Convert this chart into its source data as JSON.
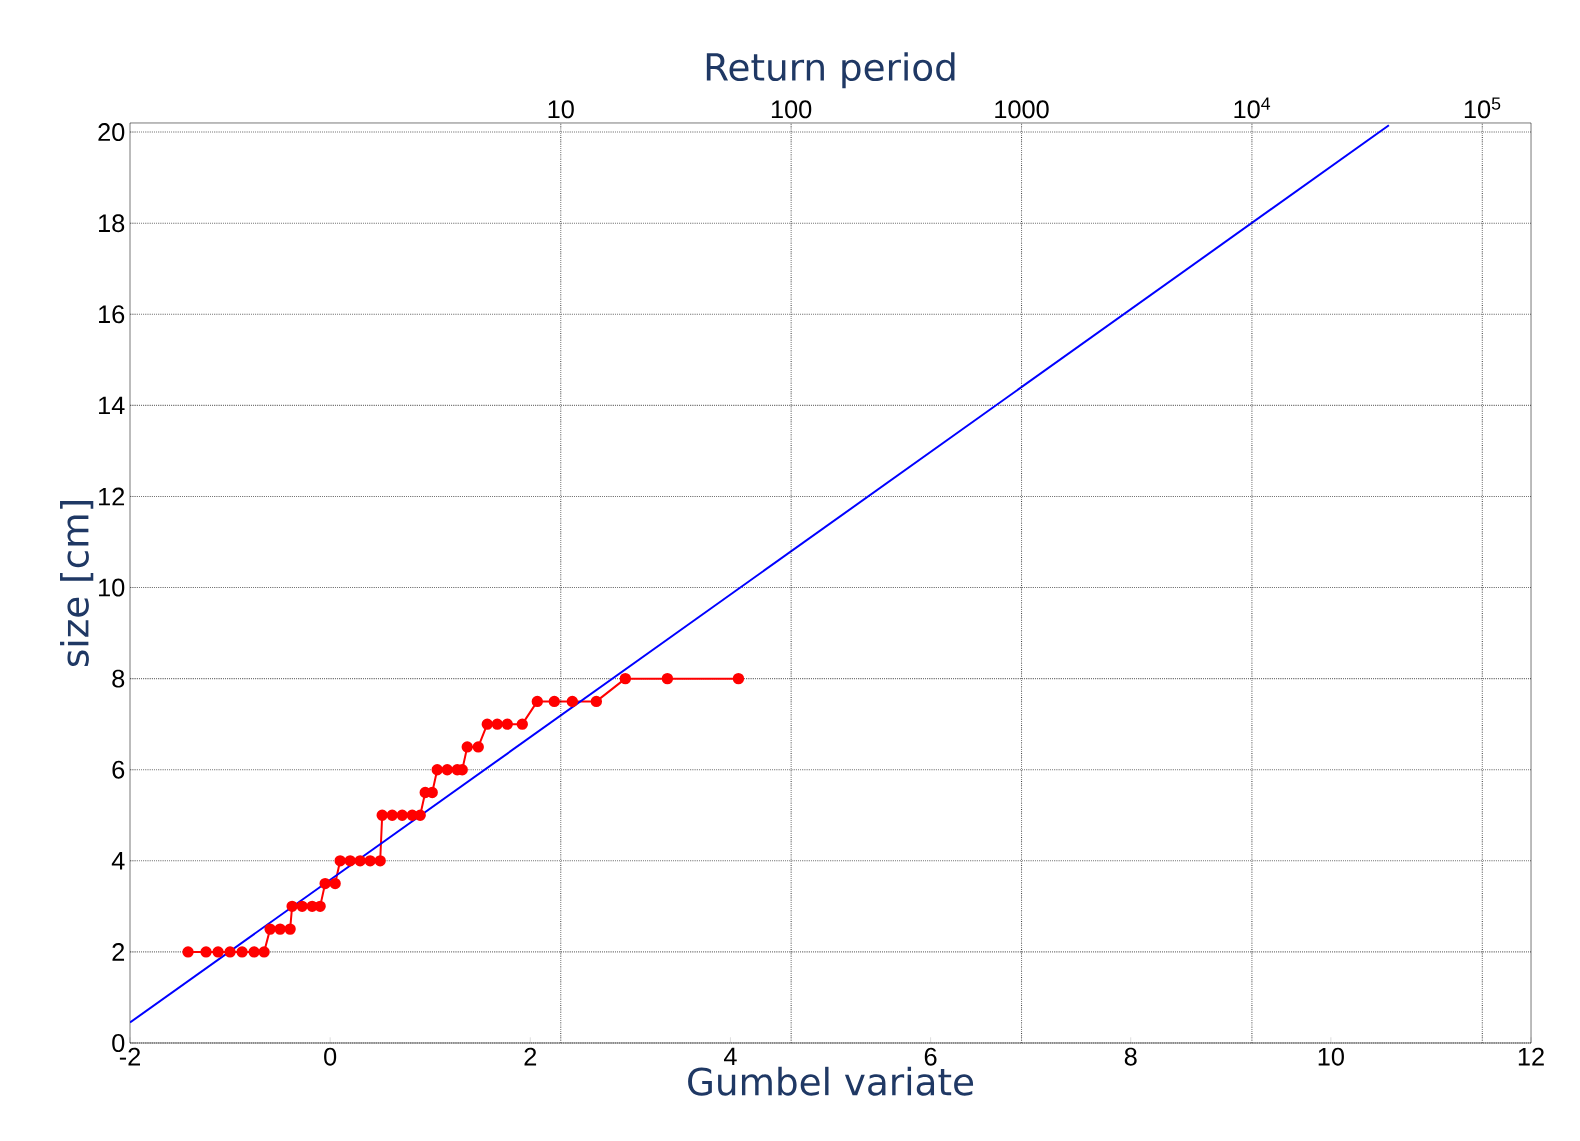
{
  "chart_data": {
    "type": "line",
    "xlabel": "Gumbel variate",
    "ylabel": "size [cm]",
    "x2label": "Return period",
    "xlim": [
      -2,
      12
    ],
    "xticks": [
      -2,
      0,
      2,
      4,
      6,
      8,
      10,
      12
    ],
    "ylim": [
      0,
      20.2
    ],
    "yticks": [
      0,
      2,
      4,
      6,
      8,
      10,
      12,
      14,
      16,
      18,
      20
    ],
    "x2lim": [
      0.135,
      162755
    ],
    "log": "x2",
    "x2ticks": [
      10,
      100,
      1000,
      {
        "value": 10000,
        "label": "10$^{4}$"
      },
      {
        "value": 100000,
        "label": "10$^{5}$"
      }
    ],
    "grid": true,
    "series": [
      {
        "color": "#ff0000",
        "marker": "circle",
        "x": [
          -1.42,
          -1.24,
          -1.12,
          -1.0,
          -0.88,
          -0.76,
          -0.66,
          -0.6,
          -0.5,
          -0.4,
          -0.38,
          -0.28,
          -0.18,
          -0.1,
          -0.05,
          0.05,
          0.1,
          0.2,
          0.3,
          0.4,
          0.5,
          0.52,
          0.62,
          0.72,
          0.82,
          0.9,
          0.95,
          1.02,
          1.07,
          1.17,
          1.27,
          1.32,
          1.37,
          1.48,
          1.57,
          1.67,
          1.77,
          1.92,
          2.07,
          2.24,
          2.42,
          2.66,
          2.95,
          3.37,
          4.08
        ],
        "values": [
          2,
          2,
          2,
          2,
          2,
          2,
          2,
          2.5,
          2.5,
          2.5,
          3,
          3,
          3,
          3,
          3.5,
          3.5,
          4,
          4,
          4,
          4,
          4,
          5,
          5,
          5,
          5,
          5,
          5.5,
          5.5,
          6,
          6,
          6,
          6,
          6.5,
          6.5,
          7,
          7,
          7,
          7,
          7.5,
          7.5,
          7.5,
          7.5,
          8,
          8,
          8
        ]
      },
      {
        "color": "#0000ff",
        "marker": "none",
        "x": [
          -2,
          10.58
        ],
        "values": [
          0.45,
          20.15
        ]
      }
    ]
  }
}
